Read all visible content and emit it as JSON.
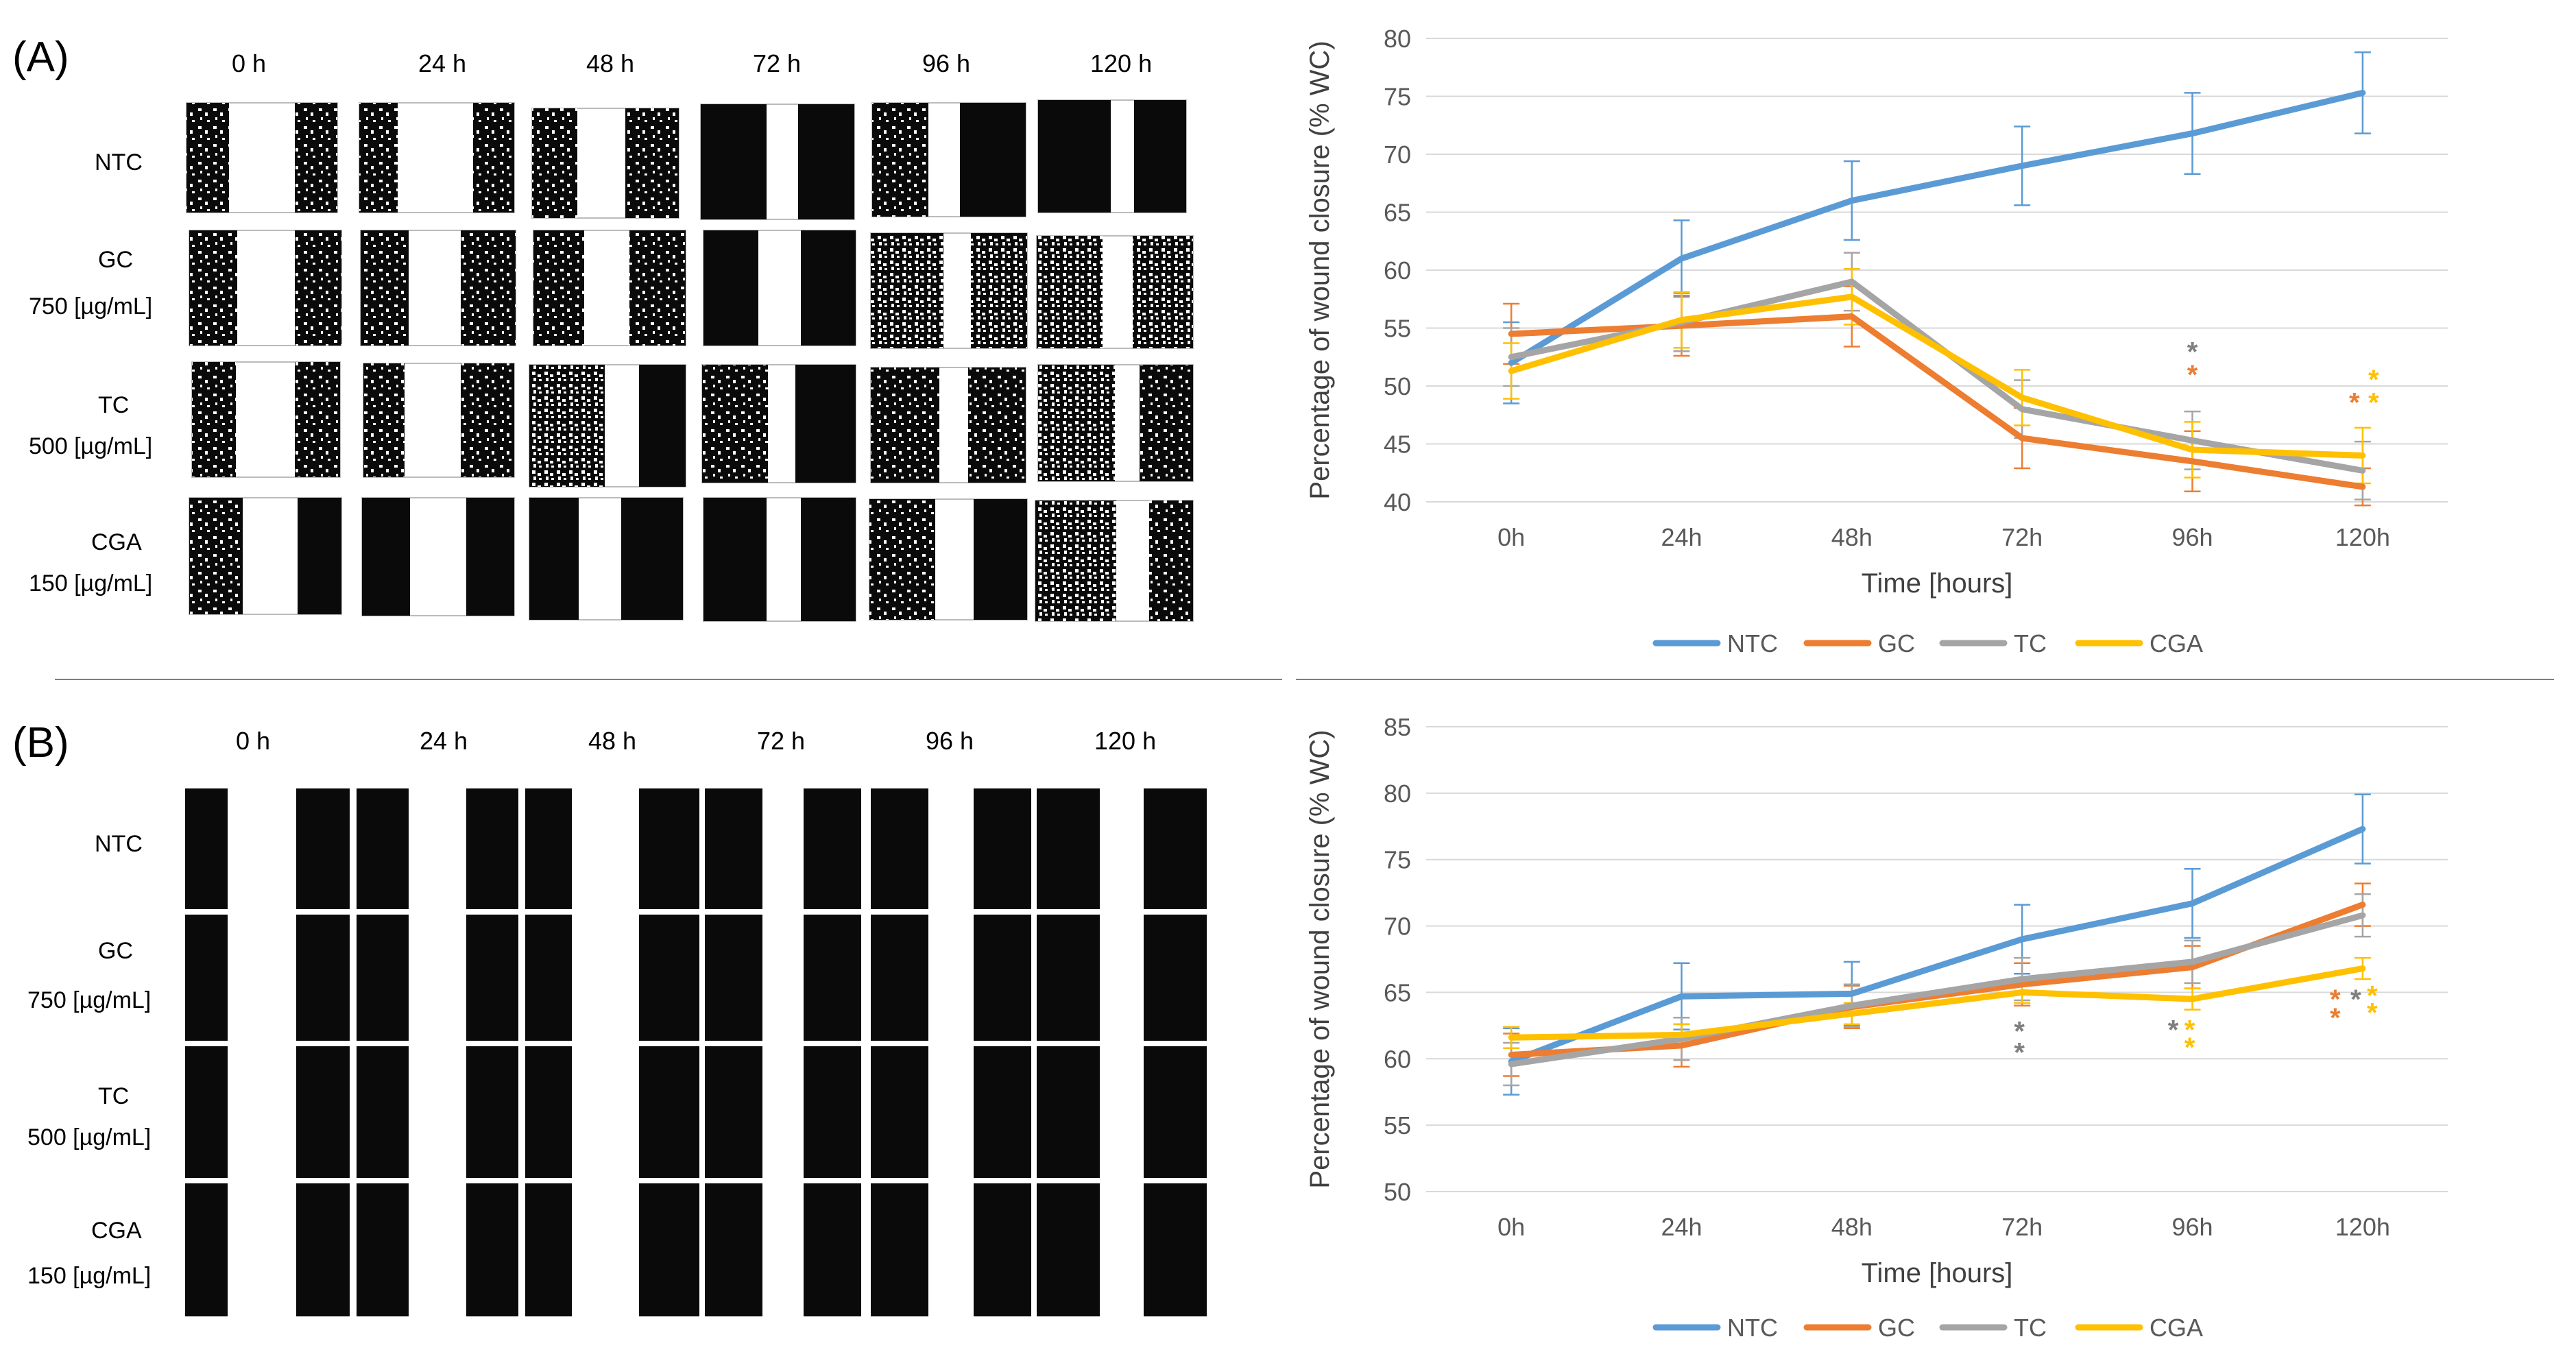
{
  "panels": [
    {
      "label": "(A)",
      "time_headers": [
        "0 h",
        "24 h",
        "48 h",
        "72 h",
        "96 h",
        "120 h"
      ],
      "rows": [
        {
          "name": "NTC",
          "conc": ""
        },
        {
          "name": "GC",
          "conc": "750 [µg/mL]"
        },
        {
          "name": "TC",
          "conc": "500 [µg/mL]"
        },
        {
          "name": "CGA",
          "conc": "150 [µg/mL]"
        }
      ]
    },
    {
      "label": "(B)",
      "time_headers": [
        "0 h",
        "24 h",
        "48 h",
        "72 h",
        "96 h",
        "120 h"
      ],
      "rows": [
        {
          "name": "NTC",
          "conc": ""
        },
        {
          "name": "GC",
          "conc": "750 [µg/mL]"
        },
        {
          "name": "TC",
          "conc": "500 [µg/mL]"
        },
        {
          "name": "CGA",
          "conc": "150 [µg/mL]"
        }
      ]
    }
  ],
  "chart_data": [
    {
      "type": "line",
      "ylabel": "Percentage of wound closure (% WC)",
      "xlabel": "Time [hours]",
      "categories": [
        "0h",
        "24h",
        "48h",
        "72h",
        "96h",
        "120h"
      ],
      "ylim": [
        40,
        80
      ],
      "yticks": [
        40,
        45,
        50,
        55,
        60,
        65,
        70,
        75,
        80
      ],
      "grid": true,
      "legend": "bottom",
      "series": [
        {
          "name": "NTC",
          "color": "#5B9BD5",
          "values": [
            52,
            61,
            66,
            69,
            71.8,
            75.3
          ],
          "errors": [
            3.5,
            3.3,
            3.4,
            3.4,
            3.5,
            3.5
          ]
        },
        {
          "name": "GC",
          "color": "#ED7D31",
          "values": [
            54.5,
            55.2,
            56,
            45.5,
            43.5,
            41.3
          ],
          "errors": [
            2.6,
            2.6,
            2.6,
            2.6,
            2.6,
            1.6
          ]
        },
        {
          "name": "TC",
          "color": "#A5A5A5",
          "values": [
            52.5,
            55.5,
            59,
            48,
            45.3,
            42.7
          ],
          "errors": [
            2.5,
            2.5,
            2.5,
            2.5,
            2.5,
            2.5
          ]
        },
        {
          "name": "CGA",
          "color": "#FFC000",
          "values": [
            51.3,
            55.7,
            57.7,
            49,
            44.5,
            44
          ],
          "errors": [
            2.4,
            2.4,
            2.4,
            2.4,
            2.4,
            2.4
          ]
        }
      ],
      "significance": [
        {
          "symbol": "*",
          "color": "#7F7F7F",
          "category": "96h",
          "y": 53,
          "dx": 0
        },
        {
          "symbol": "*",
          "color": "#ED7D31",
          "category": "96h",
          "y": 51,
          "dx": 0
        },
        {
          "symbol": "*",
          "color": "#FFC000",
          "category": "120h",
          "y": 50.6,
          "dx": 16
        },
        {
          "symbol": "*",
          "color": "#ED7D31",
          "category": "120h",
          "y": 48.6,
          "dx": -12
        },
        {
          "symbol": "*",
          "color": "#FFC000",
          "category": "120h",
          "y": 48.6,
          "dx": 16
        }
      ]
    },
    {
      "type": "line",
      "ylabel": "Percentage of wound closure (% WC)",
      "xlabel": "Time [hours]",
      "categories": [
        "0h",
        "24h",
        "48h",
        "72h",
        "96h",
        "120h"
      ],
      "ylim": [
        50,
        85
      ],
      "yticks": [
        50,
        55,
        60,
        65,
        70,
        75,
        80,
        85
      ],
      "grid": true,
      "legend": "bottom",
      "series": [
        {
          "name": "NTC",
          "color": "#5B9BD5",
          "values": [
            59.8,
            64.7,
            64.9,
            69,
            71.7,
            77.3
          ],
          "errors": [
            2.5,
            2.5,
            2.4,
            2.6,
            2.6,
            2.6
          ]
        },
        {
          "name": "GC",
          "color": "#ED7D31",
          "values": [
            60.3,
            61,
            63.9,
            65.6,
            66.9,
            71.6
          ],
          "errors": [
            1.6,
            1.6,
            1.6,
            1.6,
            1.6,
            1.6
          ]
        },
        {
          "name": "TC",
          "color": "#A5A5A5",
          "values": [
            59.6,
            61.5,
            64,
            66,
            67.3,
            70.8
          ],
          "errors": [
            1.6,
            1.6,
            1.6,
            1.6,
            1.6,
            1.6
          ]
        },
        {
          "name": "CGA",
          "color": "#FFC000",
          "values": [
            61.6,
            61.8,
            63.4,
            65,
            64.5,
            66.8
          ],
          "errors": [
            0.8,
            0.8,
            0.8,
            0.8,
            0.8,
            0.8
          ]
        }
      ],
      "significance": [
        {
          "symbol": "*",
          "color": "#7F7F7F",
          "category": "72h",
          "y": 62.1,
          "dx": -4
        },
        {
          "symbol": "*",
          "color": "#7F7F7F",
          "category": "72h",
          "y": 60.5,
          "dx": -4
        },
        {
          "symbol": "*",
          "color": "#7F7F7F",
          "category": "96h",
          "y": 62.2,
          "dx": -28
        },
        {
          "symbol": "*",
          "color": "#FFC000",
          "category": "96h",
          "y": 62.2,
          "dx": -4
        },
        {
          "symbol": "*",
          "color": "#FFC000",
          "category": "96h",
          "y": 60.9,
          "dx": -4
        },
        {
          "symbol": "*",
          "color": "#ED7D31",
          "category": "120h",
          "y": 64.5,
          "dx": -40
        },
        {
          "symbol": "*",
          "color": "#7F7F7F",
          "category": "120h",
          "y": 64.5,
          "dx": -10
        },
        {
          "symbol": "*",
          "color": "#FFC000",
          "category": "120h",
          "y": 64.8,
          "dx": 14
        },
        {
          "symbol": "*",
          "color": "#ED7D31",
          "category": "120h",
          "y": 63.1,
          "dx": -40
        },
        {
          "symbol": "*",
          "color": "#FFC000",
          "category": "120h",
          "y": 63.5,
          "dx": 14
        }
      ]
    }
  ]
}
